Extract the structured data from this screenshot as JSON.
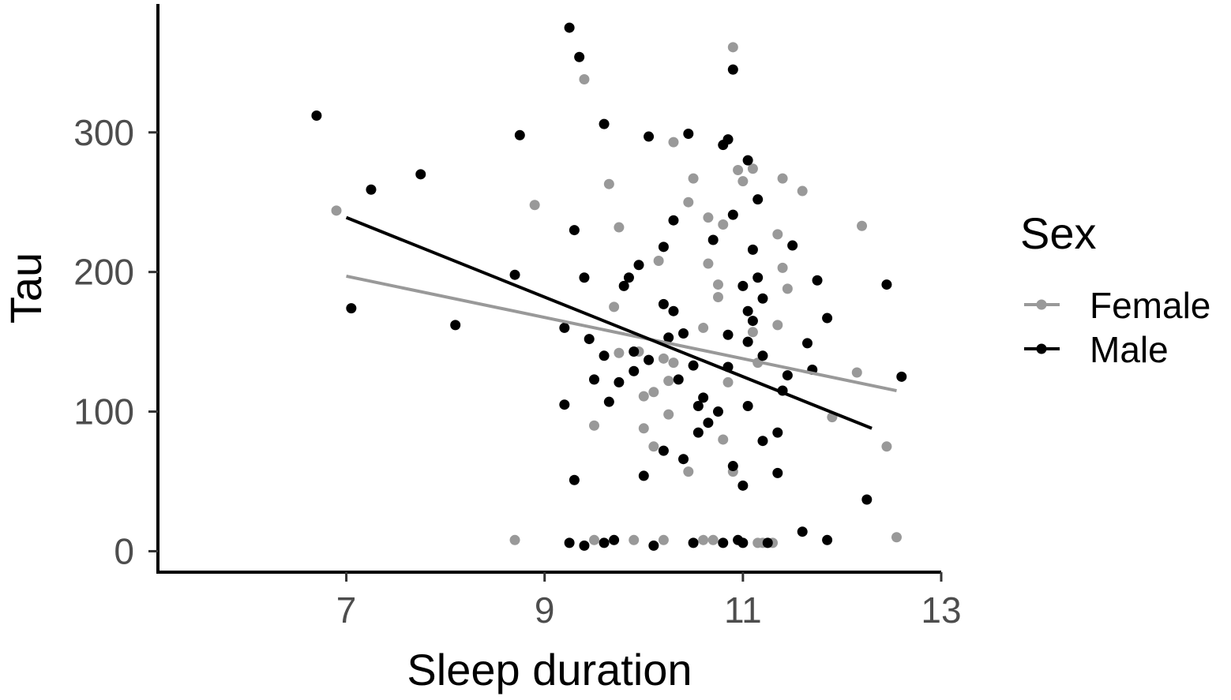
{
  "chart_data": {
    "type": "scatter",
    "xlabel": "Sleep duration",
    "ylabel": "Tau",
    "xlim": [
      5.1,
      13.0
    ],
    "ylim": [
      -15,
      392
    ],
    "xticks": [
      "7",
      "9",
      "11",
      "13"
    ],
    "yticks": [
      "0",
      "100",
      "200",
      "300"
    ],
    "grid": false,
    "legend": {
      "title": "Sex",
      "position": "right"
    },
    "series": [
      {
        "name": "Female",
        "color": "#999999",
        "points": [
          [
            6.9,
            244
          ],
          [
            8.7,
            8
          ],
          [
            8.9,
            248
          ],
          [
            9.4,
            338
          ],
          [
            9.5,
            8
          ],
          [
            9.5,
            90
          ],
          [
            9.65,
            263
          ],
          [
            9.7,
            175
          ],
          [
            9.75,
            142
          ],
          [
            9.75,
            232
          ],
          [
            9.9,
            8
          ],
          [
            9.95,
            143
          ],
          [
            10.0,
            88
          ],
          [
            10.0,
            111
          ],
          [
            10.1,
            75
          ],
          [
            10.1,
            114
          ],
          [
            10.15,
            208
          ],
          [
            10.2,
            8
          ],
          [
            10.2,
            138
          ],
          [
            10.25,
            122
          ],
          [
            10.25,
            98
          ],
          [
            10.3,
            135
          ],
          [
            10.3,
            293
          ],
          [
            10.45,
            57
          ],
          [
            10.45,
            250
          ],
          [
            10.5,
            267
          ],
          [
            10.6,
            8
          ],
          [
            10.6,
            160
          ],
          [
            10.65,
            239
          ],
          [
            10.65,
            206
          ],
          [
            10.7,
            8
          ],
          [
            10.75,
            182
          ],
          [
            10.75,
            191
          ],
          [
            10.8,
            234
          ],
          [
            10.8,
            80
          ],
          [
            10.85,
            121
          ],
          [
            10.9,
            361
          ],
          [
            10.9,
            57
          ],
          [
            10.95,
            273
          ],
          [
            11.0,
            265
          ],
          [
            11.05,
            150
          ],
          [
            11.1,
            274
          ],
          [
            11.1,
            157
          ],
          [
            11.15,
            135
          ],
          [
            11.15,
            6
          ],
          [
            11.2,
            6
          ],
          [
            11.3,
            6
          ],
          [
            11.35,
            227
          ],
          [
            11.35,
            162
          ],
          [
            11.4,
            267
          ],
          [
            11.4,
            203
          ],
          [
            11.45,
            188
          ],
          [
            11.6,
            258
          ],
          [
            11.9,
            96
          ],
          [
            12.15,
            128
          ],
          [
            12.2,
            233
          ],
          [
            12.45,
            75
          ],
          [
            12.55,
            10
          ]
        ]
      },
      {
        "name": "Male",
        "color": "#000000",
        "points": [
          [
            6.7,
            312
          ],
          [
            7.05,
            174
          ],
          [
            7.25,
            259
          ],
          [
            7.75,
            270
          ],
          [
            8.1,
            162
          ],
          [
            8.7,
            198
          ],
          [
            8.75,
            298
          ],
          [
            9.2,
            160
          ],
          [
            9.2,
            105
          ],
          [
            9.25,
            6
          ],
          [
            9.25,
            375
          ],
          [
            9.3,
            230
          ],
          [
            9.3,
            51
          ],
          [
            9.35,
            354
          ],
          [
            9.4,
            4
          ],
          [
            9.4,
            196
          ],
          [
            9.45,
            152
          ],
          [
            9.5,
            123
          ],
          [
            9.6,
            6
          ],
          [
            9.6,
            140
          ],
          [
            9.6,
            306
          ],
          [
            9.65,
            107
          ],
          [
            9.7,
            8
          ],
          [
            9.75,
            121
          ],
          [
            9.8,
            190
          ],
          [
            9.85,
            196
          ],
          [
            9.9,
            143
          ],
          [
            9.9,
            129
          ],
          [
            9.95,
            205
          ],
          [
            10.0,
            54
          ],
          [
            10.05,
            137
          ],
          [
            10.05,
            297
          ],
          [
            10.1,
            4
          ],
          [
            10.2,
            72
          ],
          [
            10.2,
            177
          ],
          [
            10.2,
            218
          ],
          [
            10.25,
            153
          ],
          [
            10.3,
            172
          ],
          [
            10.3,
            237
          ],
          [
            10.35,
            123
          ],
          [
            10.4,
            156
          ],
          [
            10.4,
            66
          ],
          [
            10.45,
            299
          ],
          [
            10.5,
            133
          ],
          [
            10.5,
            6
          ],
          [
            10.55,
            104
          ],
          [
            10.55,
            85
          ],
          [
            10.6,
            110
          ],
          [
            10.65,
            92
          ],
          [
            10.7,
            223
          ],
          [
            10.75,
            100
          ],
          [
            10.8,
            291
          ],
          [
            10.8,
            6
          ],
          [
            10.85,
            295
          ],
          [
            10.85,
            155
          ],
          [
            10.85,
            132
          ],
          [
            10.9,
            241
          ],
          [
            10.9,
            61
          ],
          [
            10.9,
            345
          ],
          [
            10.95,
            8
          ],
          [
            11.0,
            190
          ],
          [
            11.0,
            6
          ],
          [
            11.0,
            47
          ],
          [
            11.05,
            280
          ],
          [
            11.05,
            172
          ],
          [
            11.05,
            150
          ],
          [
            11.05,
            104
          ],
          [
            11.1,
            216
          ],
          [
            11.1,
            165
          ],
          [
            11.15,
            252
          ],
          [
            11.15,
            196
          ],
          [
            11.2,
            140
          ],
          [
            11.2,
            79
          ],
          [
            11.2,
            181
          ],
          [
            11.25,
            6
          ],
          [
            11.35,
            56
          ],
          [
            11.35,
            85
          ],
          [
            11.4,
            115
          ],
          [
            11.45,
            126
          ],
          [
            11.5,
            219
          ],
          [
            11.6,
            14
          ],
          [
            11.65,
            149
          ],
          [
            11.7,
            130
          ],
          [
            11.75,
            194
          ],
          [
            11.85,
            167
          ],
          [
            11.85,
            8
          ],
          [
            12.25,
            37
          ],
          [
            12.45,
            191
          ],
          [
            12.6,
            125
          ]
        ]
      }
    ],
    "trend_lines": [
      {
        "name": "Female",
        "color": "#999999",
        "x": [
          7.0,
          12.55
        ],
        "y": [
          197,
          115
        ]
      },
      {
        "name": "Male",
        "color": "#000000",
        "x": [
          7.0,
          12.3
        ],
        "y": [
          239,
          88
        ]
      }
    ]
  }
}
